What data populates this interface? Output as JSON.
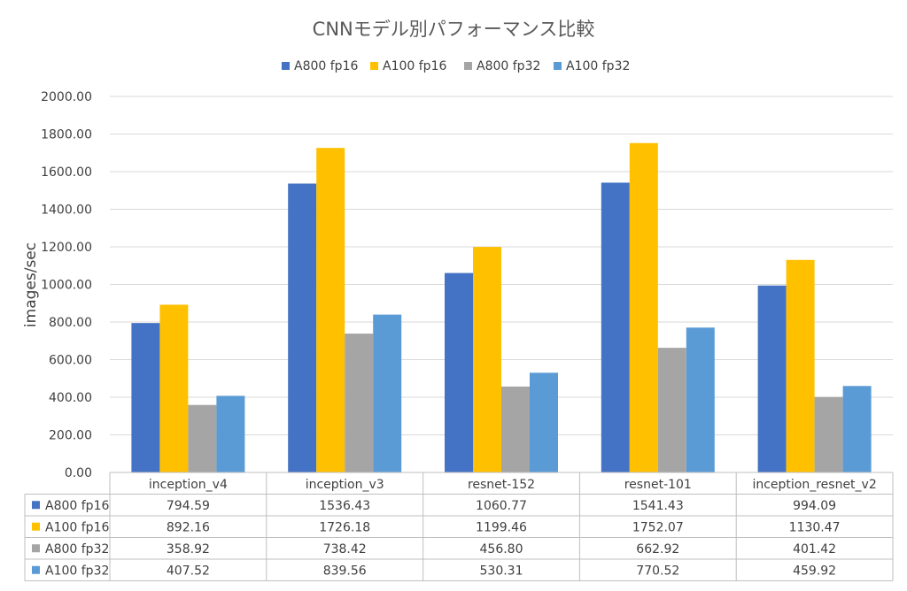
{
  "chart_data": {
    "type": "bar",
    "title": "CNNモデル別パフォーマンス比較",
    "xlabel": "",
    "ylabel": "images/sec",
    "ylim": [
      0,
      2000
    ],
    "ytick_step": 200,
    "ytick_format_decimals": 2,
    "grid": true,
    "legend_position": "top",
    "data_table": true,
    "categories": [
      "inception_v4",
      "inception_v3",
      "resnet-152",
      "resnet-101",
      "inception_resnet_v2"
    ],
    "series": [
      {
        "name": "A800 fp16",
        "color": "#4472C4",
        "values": [
          794.59,
          1536.43,
          1060.77,
          1541.43,
          994.09
        ],
        "labels": [
          "794.59",
          "1536.43",
          "1060.77",
          "1541.43",
          "994.09"
        ]
      },
      {
        "name": "A100 fp16",
        "color": "#FFC000",
        "values": [
          892.16,
          1726.18,
          1199.46,
          1752.07,
          1130.47
        ],
        "labels": [
          "892.16",
          "1726.18",
          "1199.46",
          "1752.07",
          "1130.47"
        ]
      },
      {
        "name": "A800 fp32",
        "color": "#A5A5A5",
        "values": [
          358.92,
          738.42,
          456.8,
          662.92,
          401.42
        ],
        "labels": [
          "358.92",
          "738.42",
          "456.80",
          "662.92",
          "401.42"
        ]
      },
      {
        "name": "A100 fp32",
        "color": "#5B9BD5",
        "values": [
          407.52,
          839.56,
          530.31,
          770.52,
          459.92
        ],
        "labels": [
          "407.52",
          "839.56",
          "530.31",
          "770.52",
          "459.92"
        ]
      }
    ]
  }
}
